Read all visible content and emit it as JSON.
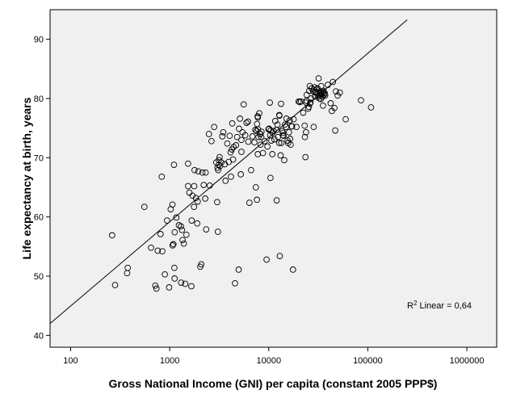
{
  "chart_data": {
    "type": "scatter",
    "title": "",
    "xlabel": "Gross National Income (GNI) per capita (constant 2005 PPP$)",
    "ylabel": "Life expectancy at birth, years",
    "xscale": "log",
    "xlim": [
      62,
      2000000
    ],
    "ylim": [
      38,
      95
    ],
    "xticks": [
      100,
      1000,
      10000,
      100000,
      1000000
    ],
    "xtick_labels": [
      "100",
      "1000",
      "10000",
      "100000",
      "1000000"
    ],
    "yticks": [
      40,
      50,
      60,
      70,
      80,
      90
    ],
    "ytick_labels": [
      "40",
      "50",
      "60",
      "70",
      "80",
      "90"
    ],
    "grid": false,
    "plot_background": "#f0f0f0",
    "marker": "open-circle",
    "fit_line": {
      "type": "linear-in-log-x",
      "points": [
        [
          62,
          42.0
        ],
        [
          250000,
          93.3
        ]
      ],
      "r2_label": {
        "base": "R",
        "sup": "2",
        "rest": " Linear = 0,64"
      }
    },
    "points": [
      [
        262,
        56.9
      ],
      [
        281,
        48.5
      ],
      [
        372,
        50.5
      ],
      [
        377,
        51.4
      ],
      [
        555,
        61.7
      ],
      [
        648,
        54.8
      ],
      [
        716,
        48.4
      ],
      [
        735,
        47.9
      ],
      [
        757,
        54.3
      ],
      [
        808,
        57.1
      ],
      [
        831,
        66.8
      ],
      [
        843,
        54.2
      ],
      [
        894,
        50.3
      ],
      [
        941,
        59.4
      ],
      [
        986,
        48.1
      ],
      [
        1022,
        61.3
      ],
      [
        1069,
        55.2
      ],
      [
        1066,
        62.1
      ],
      [
        1090,
        55.4
      ],
      [
        1105,
        68.8
      ],
      [
        1114,
        51.4
      ],
      [
        1120,
        49.6
      ],
      [
        1124,
        57.4
      ],
      [
        1165,
        59.9
      ],
      [
        1239,
        58.6
      ],
      [
        1298,
        58.4
      ],
      [
        1305,
        48.9
      ],
      [
        1330,
        57.8
      ],
      [
        1348,
        56.1
      ],
      [
        1388,
        55.5
      ],
      [
        1433,
        48.7
      ],
      [
        1475,
        57.0
      ],
      [
        1534,
        65.2
      ],
      [
        1535,
        69.0
      ],
      [
        1581,
        64.1
      ],
      [
        1655,
        48.3
      ],
      [
        1667,
        59.4
      ],
      [
        1700,
        63.6
      ],
      [
        1759,
        61.7
      ],
      [
        1766,
        65.2
      ],
      [
        1783,
        67.9
      ],
      [
        1838,
        63.2
      ],
      [
        1897,
        58.9
      ],
      [
        1917,
        62.6
      ],
      [
        1942,
        67.7
      ],
      [
        2036,
        51.6
      ],
      [
        2083,
        52.0
      ],
      [
        2137,
        67.5
      ],
      [
        2203,
        65.4
      ],
      [
        2283,
        63.1
      ],
      [
        2306,
        67.5
      ],
      [
        2337,
        57.9
      ],
      [
        2490,
        74.0
      ],
      [
        2536,
        65.3
      ],
      [
        2642,
        72.8
      ],
      [
        2814,
        75.2
      ],
      [
        2954,
        69.2
      ],
      [
        3017,
        62.5
      ],
      [
        3039,
        68.3
      ],
      [
        3066,
        57.5
      ],
      [
        3084,
        67.9
      ],
      [
        3130,
        69.6
      ],
      [
        3133,
        68.8
      ],
      [
        3192,
        70.1
      ],
      [
        3224,
        68.6
      ],
      [
        3324,
        69.2
      ],
      [
        3400,
        73.6
      ],
      [
        3473,
        74.3
      ],
      [
        3594,
        68.9
      ],
      [
        3655,
        66.1
      ],
      [
        3812,
        72.4
      ],
      [
        3946,
        69.3
      ],
      [
        4029,
        73.7
      ],
      [
        4120,
        70.9
      ],
      [
        4155,
        66.8
      ],
      [
        4240,
        71.4
      ],
      [
        4281,
        75.8
      ],
      [
        4367,
        69.7
      ],
      [
        4414,
        71.8
      ],
      [
        4567,
        48.8
      ],
      [
        4673,
        72.1
      ],
      [
        4795,
        73.5
      ],
      [
        4971,
        51.1
      ],
      [
        5018,
        74.9
      ],
      [
        5117,
        76.6
      ],
      [
        5212,
        67.2
      ],
      [
        5296,
        71.0
      ],
      [
        5299,
        73.0
      ],
      [
        5435,
        74.3
      ],
      [
        5583,
        79.0
      ],
      [
        5782,
        73.8
      ],
      [
        5964,
        75.9
      ],
      [
        6192,
        76.1
      ],
      [
        6219,
        72.7
      ],
      [
        6378,
        62.4
      ],
      [
        6630,
        67.9
      ],
      [
        6849,
        73.6
      ],
      [
        7170,
        72.6
      ],
      [
        7327,
        74.7
      ],
      [
        7409,
        65.0
      ],
      [
        7545,
        74.5
      ],
      [
        7586,
        62.9
      ],
      [
        7618,
        75.7
      ],
      [
        7726,
        77.0
      ],
      [
        7758,
        70.6
      ],
      [
        7765,
        76.8
      ],
      [
        7782,
        74.8
      ],
      [
        7877,
        73.5
      ],
      [
        8016,
        77.5
      ],
      [
        8158,
        74.0
      ],
      [
        8229,
        74.0
      ],
      [
        8268,
        72.2
      ],
      [
        8408,
        73.5
      ],
      [
        8446,
        74.4
      ],
      [
        8741,
        70.8
      ],
      [
        9092,
        72.8
      ],
      [
        9510,
        52.8
      ],
      [
        9700,
        71.9
      ],
      [
        9922,
        74.8
      ],
      [
        10057,
        74.9
      ],
      [
        10253,
        79.3
      ],
      [
        10352,
        73.8
      ],
      [
        10407,
        66.6
      ],
      [
        10443,
        74.6
      ],
      [
        10631,
        72.9
      ],
      [
        10861,
        70.6
      ],
      [
        10941,
        74.2
      ],
      [
        11199,
        74.5
      ],
      [
        11401,
        73.1
      ],
      [
        11621,
        76.2
      ],
      [
        11952,
        74.7
      ],
      [
        12025,
        62.8
      ],
      [
        12224,
        75.6
      ],
      [
        12373,
        73.5
      ],
      [
        12740,
        72.5
      ],
      [
        12764,
        77.2
      ],
      [
        12823,
        77.1
      ],
      [
        12925,
        53.4
      ],
      [
        13149,
        70.4
      ],
      [
        13304,
        79.1
      ],
      [
        13403,
        72.5
      ],
      [
        13692,
        74.5
      ],
      [
        13888,
        73.8
      ],
      [
        13901,
        74.2
      ],
      [
        14113,
        73.7
      ],
      [
        14354,
        69.6
      ],
      [
        14590,
        75.6
      ],
      [
        14947,
        75.2
      ],
      [
        15095,
        76.6
      ],
      [
        15491,
        72.9
      ],
      [
        15711,
        72.5
      ],
      [
        16012,
        74.3
      ],
      [
        16268,
        76.3
      ],
      [
        16426,
        73.2
      ],
      [
        16626,
        72.2
      ],
      [
        16999,
        75.3
      ],
      [
        17179,
        75.3
      ],
      [
        17580,
        51.1
      ],
      [
        17831,
        76.5
      ],
      [
        19052,
        75.2
      ],
      [
        19999,
        79.5
      ],
      [
        20525,
        79.4
      ],
      [
        21214,
        79.5
      ],
      [
        22254,
        77.6
      ],
      [
        23011,
        75.4
      ],
      [
        23174,
        73.5
      ],
      [
        23463,
        70.1
      ],
      [
        23766,
        74.3
      ],
      [
        23902,
        79.3
      ],
      [
        24040,
        79.6
      ],
      [
        24181,
        80.6
      ],
      [
        25016,
        78.3
      ],
      [
        25418,
        78.6
      ],
      [
        25613,
        81.3
      ],
      [
        25962,
        82.1
      ],
      [
        26092,
        79.2
      ],
      [
        26376,
        79.3
      ],
      [
        26791,
        80.0
      ],
      [
        27064,
        81.7
      ],
      [
        28047,
        81.2
      ],
      [
        28393,
        75.2
      ],
      [
        28707,
        81.5
      ],
      [
        29019,
        81.9
      ],
      [
        29303,
        80.3
      ],
      [
        29576,
        81.0
      ],
      [
        30025,
        81.1
      ],
      [
        30309,
        81.6
      ],
      [
        31110,
        81.7
      ],
      [
        31591,
        80.3
      ],
      [
        31842,
        83.4
      ],
      [
        32171,
        80.6
      ],
      [
        32554,
        80.0
      ],
      [
        32778,
        81.1
      ],
      [
        33137,
        80.6
      ],
      [
        33509,
        79.9
      ],
      [
        33851,
        82.1
      ],
      [
        34217,
        80.7
      ],
      [
        34568,
        81.0
      ],
      [
        34899,
        80.3
      ],
      [
        35251,
        78.8
      ],
      [
        35572,
        81.3
      ],
      [
        36005,
        81.1
      ],
      [
        36410,
        80.7
      ],
      [
        36683,
        80.9
      ],
      [
        37087,
        80.5
      ],
      [
        39471,
        82.3
      ],
      [
        42152,
        79.2
      ],
      [
        43375,
        77.9
      ],
      [
        44412,
        82.8
      ],
      [
        46074,
        78.4
      ],
      [
        46919,
        74.6
      ],
      [
        47581,
        81.2
      ],
      [
        49589,
        80.5
      ],
      [
        52159,
        81.0
      ],
      [
        59800,
        76.5
      ],
      [
        85338,
        79.7
      ],
      [
        107713,
        78.5
      ]
    ]
  }
}
